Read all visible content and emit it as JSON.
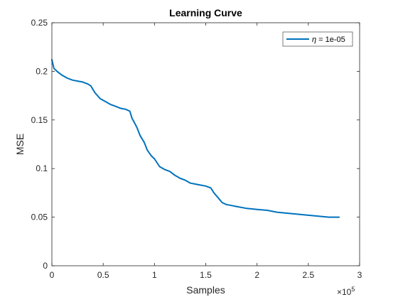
{
  "chart_data": {
    "type": "line",
    "title": "Learning Curve",
    "xlabel": "Samples",
    "ylabel": "MSE",
    "x_multiplier_label": "×10",
    "x_multiplier_exponent": "5",
    "xlim": [
      0,
      3
    ],
    "ylim": [
      0,
      0.25
    ],
    "x_ticks": [
      0,
      0.5,
      1,
      1.5,
      2,
      2.5,
      3
    ],
    "x_tick_labels": [
      "0",
      "0.5",
      "1",
      "1.5",
      "2",
      "2.5",
      "3"
    ],
    "y_ticks": [
      0,
      0.05,
      0.1,
      0.15,
      0.2,
      0.25
    ],
    "y_tick_labels": [
      "0",
      "0.05",
      "0.1",
      "0.15",
      "0.2",
      "0.25"
    ],
    "grid": false,
    "legend_placement": "top-right",
    "series": [
      {
        "name": "η = 1e-05",
        "legend_symbol": "η",
        "legend_text": " = 1e-05",
        "color": "#0072BD",
        "x": [
          0,
          0.02,
          0.05,
          0.1,
          0.15,
          0.2,
          0.25,
          0.3,
          0.35,
          0.38,
          0.42,
          0.47,
          0.52,
          0.57,
          0.62,
          0.67,
          0.72,
          0.76,
          0.78,
          0.8,
          0.83,
          0.86,
          0.9,
          0.93,
          0.97,
          1.0,
          1.05,
          1.1,
          1.15,
          1.2,
          1.25,
          1.3,
          1.35,
          1.4,
          1.45,
          1.5,
          1.55,
          1.58,
          1.62,
          1.66,
          1.7,
          1.75,
          1.8,
          1.9,
          2.0,
          2.1,
          2.2,
          2.3,
          2.4,
          2.5,
          2.6,
          2.7,
          2.8
        ],
        "y": [
          0.212,
          0.203,
          0.2,
          0.196,
          0.193,
          0.191,
          0.19,
          0.189,
          0.187,
          0.185,
          0.178,
          0.172,
          0.169,
          0.166,
          0.164,
          0.162,
          0.161,
          0.159,
          0.152,
          0.148,
          0.142,
          0.134,
          0.127,
          0.119,
          0.113,
          0.11,
          0.102,
          0.099,
          0.097,
          0.093,
          0.09,
          0.088,
          0.085,
          0.084,
          0.083,
          0.082,
          0.08,
          0.075,
          0.07,
          0.065,
          0.063,
          0.062,
          0.061,
          0.059,
          0.058,
          0.057,
          0.055,
          0.054,
          0.053,
          0.052,
          0.051,
          0.05,
          0.05
        ]
      }
    ]
  }
}
